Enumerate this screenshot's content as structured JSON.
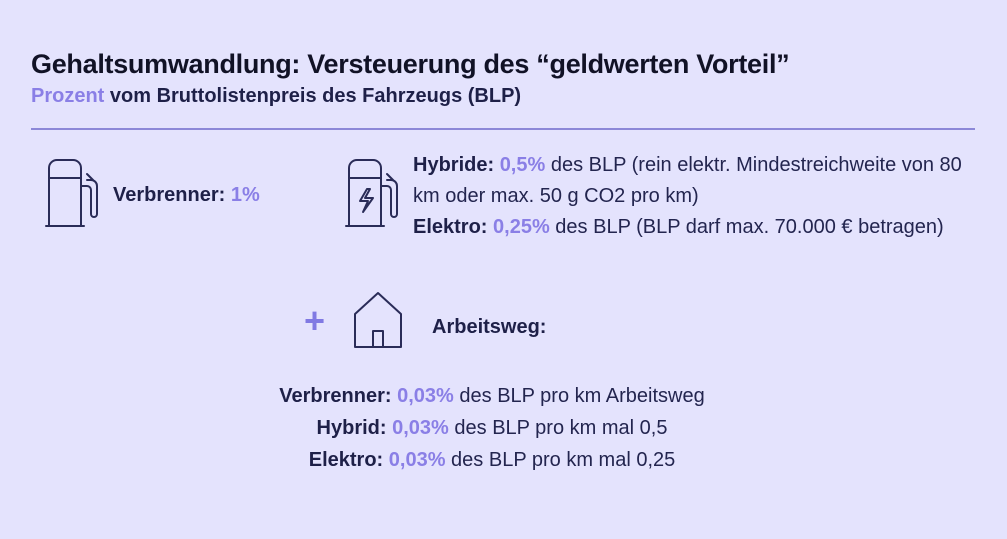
{
  "header": {
    "title": "Gehaltsumwandlung: Versteuerung des “geldwerten Vorteil”",
    "subtitle_accent": "Prozent",
    "subtitle_rest": " vom Bruttolistenpreis des Fahrzeugs (BLP)"
  },
  "verbrenner": {
    "label": "Verbrenner:",
    "value": "1%"
  },
  "ev": {
    "hybrid_label": "Hybride:",
    "hybrid_value": "0,5%",
    "hybrid_text": " des BLP (rein elektr. Mindestreichweite von 80 km oder max. 50 g CO2 pro km)",
    "elektro_label": "Elektro:",
    "elektro_value": "0,25%",
    "elektro_text": " des BLP (BLP darf max. 70.000 € betragen)"
  },
  "commute": {
    "plus": "+",
    "heading": "Arbeitsweg:",
    "rows": [
      {
        "label": "Verbrenner:",
        "value": "0,03%",
        "text": " des BLP pro km Arbeitsweg"
      },
      {
        "label": "Hybrid:",
        "value": "0,03%",
        "text": " des BLP pro km mal 0,5"
      },
      {
        "label": "Elektro:",
        "value": "0,03%",
        "text": " des BLP pro km mal 0,25"
      }
    ]
  },
  "icons": {
    "fuel_pump": "fuel-pump-icon",
    "ev_charger": "ev-charger-icon",
    "house": "house-icon"
  },
  "colors": {
    "background": "#e4e3fd",
    "accent": "#8a7fe6",
    "text": "#1e2048",
    "divider": "#8c88d8"
  }
}
